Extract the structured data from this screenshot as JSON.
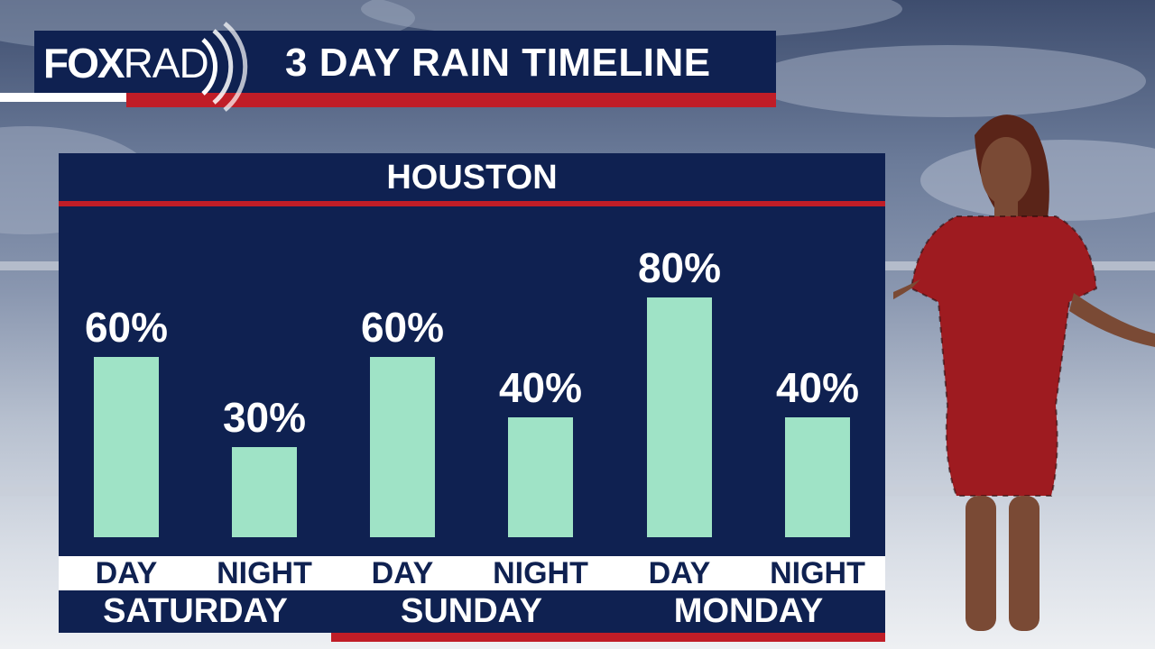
{
  "header": {
    "logo_fox": "FOX",
    "logo_rad": "RAD",
    "title": "3 DAY RAIN TIMELINE"
  },
  "colors": {
    "navy": "#0f2151",
    "red": "#c01d27",
    "bar": "#9fe3c6"
  },
  "chart_data": {
    "type": "bar",
    "title": "HOUSTON",
    "categories": [
      "DAY",
      "NIGHT",
      "DAY",
      "NIGHT",
      "DAY",
      "NIGHT"
    ],
    "groups": [
      {
        "name": "SATURDAY",
        "periods": [
          "DAY",
          "NIGHT"
        ]
      },
      {
        "name": "SUNDAY",
        "periods": [
          "DAY",
          "NIGHT"
        ]
      },
      {
        "name": "MONDAY",
        "periods": [
          "DAY",
          "NIGHT"
        ]
      }
    ],
    "values": [
      60,
      30,
      60,
      40,
      80,
      40
    ],
    "labels": [
      "60%",
      "30%",
      "60%",
      "40%",
      "80%",
      "40%"
    ],
    "unit": "%",
    "ylim": [
      0,
      100
    ],
    "grid": false
  }
}
